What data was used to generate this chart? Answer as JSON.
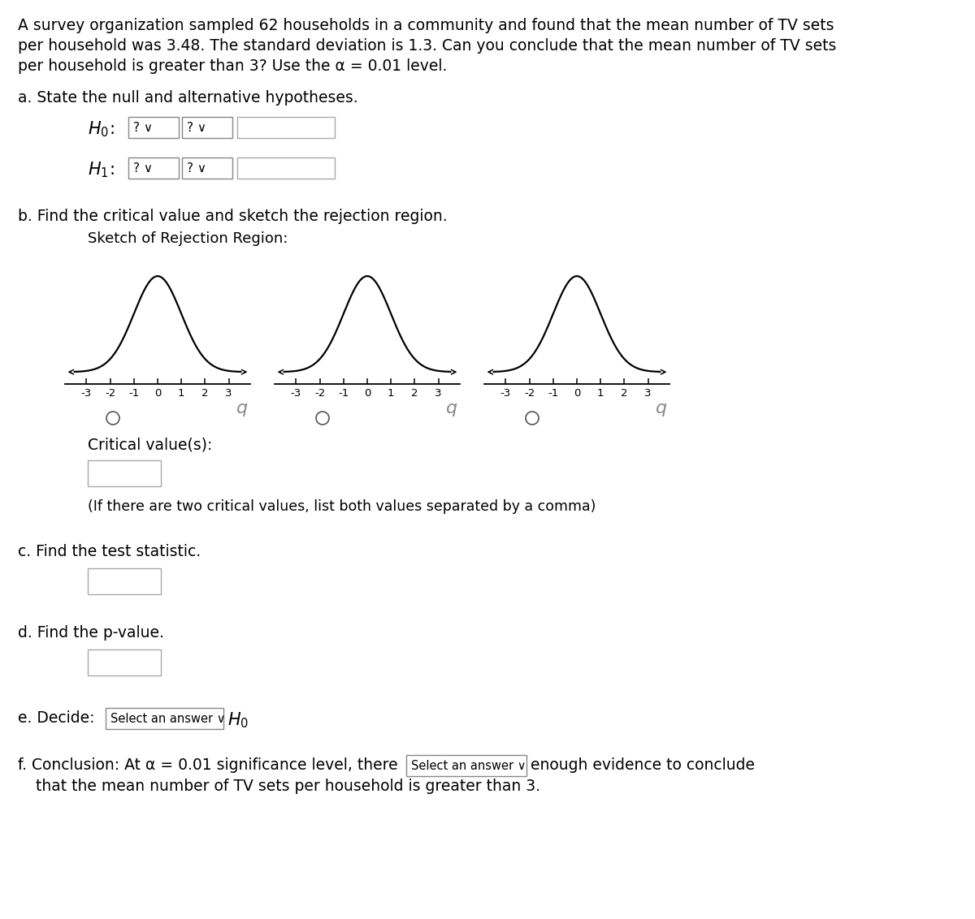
{
  "title_lines": [
    "A survey organization sampled 62 households in a community and found that the mean number of TV sets",
    "per household was 3.48. The standard deviation is 1.3. Can you conclude that the mean number of TV sets",
    "per household is greater than 3? Use the α = 0.01 level."
  ],
  "section_a": "a. State the null and alternative hypotheses.",
  "h0_text": "H₀:",
  "h1_text": "H₁:",
  "dropdown1_text": "? ∨",
  "dropdown2_text": "? ∨",
  "section_b": "b. Find the critical value and sketch the rejection region.",
  "sketch_label": "Sketch of Rejection Region:",
  "critical_label": "Critical value(s):",
  "critical_note": "(If there are two critical values, list both values separated by a comma)",
  "section_c": "c. Find the test statistic.",
  "section_d": "d. Find the p-value.",
  "section_e_pre": "e. Decide:",
  "section_e_dropdown": "Select an answer ∨",
  "section_e_h0": "H₀",
  "section_f_pre": "f. Conclusion: At α = 0.01 significance level, there",
  "section_f_dropdown": "Select an answer ∨",
  "section_f_post1": "enough evidence to conclude",
  "section_f_post2": "that the mean number of TV sets per household is greater than 3.",
  "bg": "#ffffff",
  "text_color": "#000000",
  "box_edge": "#aaaaaa",
  "drop_edge": "#888888"
}
